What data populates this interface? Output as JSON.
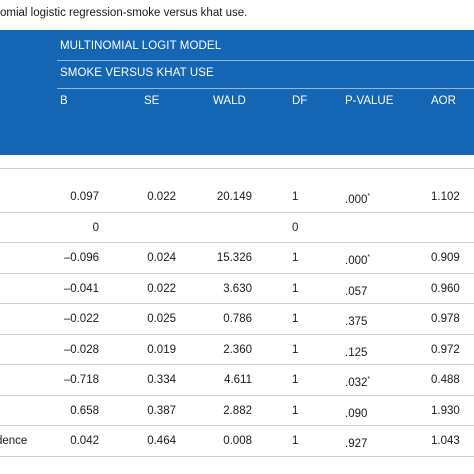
{
  "caption": "omial logistic regression-smoke versus khat use.",
  "header": {
    "model_title": "MULTINOMIAL LOGIT MODEL",
    "comparison_title": "SMOKE VERSUS KHAT USE",
    "columns": {
      "b": "B",
      "se": "SE",
      "wald": "WALD",
      "df": "DF",
      "p": "P-VALUE",
      "aor": "AOR"
    }
  },
  "rows": [
    {
      "label": "",
      "b": "0.097",
      "se": "0.022",
      "wald": "20.149",
      "df": "1",
      "p": ".000",
      "p_mark": "*",
      "aor": "1.102"
    },
    {
      "label": "",
      "b": "0",
      "se": "",
      "wald": "",
      "df": "0",
      "p": "",
      "p_mark": "",
      "aor": ""
    },
    {
      "label": "",
      "b": "–0.096",
      "se": "0.024",
      "wald": "15.326",
      "df": "1",
      "p": ".000",
      "p_mark": "*",
      "aor": "0.909"
    },
    {
      "label": "",
      "b": "–0.041",
      "se": "0.022",
      "wald": "3.630",
      "df": "1",
      "p": ".057",
      "p_mark": "",
      "aor": "0.960"
    },
    {
      "label": "",
      "b": "–0.022",
      "se": "0.025",
      "wald": "0.786",
      "df": "1",
      "p": ".375",
      "p_mark": "",
      "aor": "0.978"
    },
    {
      "label": "",
      "b": "–0.028",
      "se": "0.019",
      "wald": "2.360",
      "df": "1",
      "p": ".125",
      "p_mark": "",
      "aor": "0.972"
    },
    {
      "label": "",
      "b": "–0.718",
      "se": "0.334",
      "wald": "4.611",
      "df": "1",
      "p": ".032",
      "p_mark": "*",
      "aor": "0.488"
    },
    {
      "label": "",
      "b": "0.658",
      "se": "0.387",
      "wald": "2.882",
      "df": "1",
      "p": ".090",
      "p_mark": "",
      "aor": "1.930"
    },
    {
      "label": "dence",
      "b": "0.042",
      "se": "0.464",
      "wald": "0.008",
      "df": "1",
      "p": ".927",
      "p_mark": "",
      "aor": "1.043"
    }
  ],
  "colors": {
    "header_bg": "#1565b5",
    "header_text": "#ffffff",
    "rule": "#cfcfcf"
  }
}
